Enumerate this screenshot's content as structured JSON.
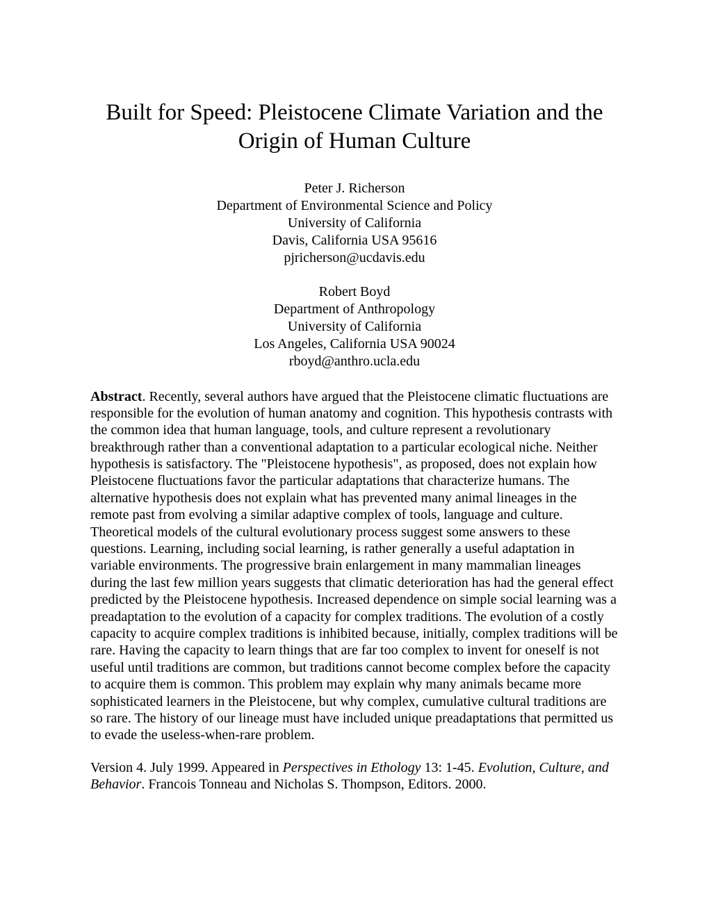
{
  "title": "Built for Speed: Pleistocene Climate Variation and the Origin of Human Culture",
  "author1": {
    "name": "Peter J. Richerson",
    "department": "Department of Environmental Science and Policy",
    "university": "University of California",
    "address": "Davis, California USA  95616",
    "email": "pjricherson@ucdavis.edu"
  },
  "author2": {
    "name": "Robert Boyd",
    "department": "Department of Anthropology",
    "university": "University of California",
    "address": "Los Angeles, California USA  90024",
    "email": "rboyd@anthro.ucla.edu"
  },
  "abstract": {
    "label": "Abstract",
    "text": ". Recently, several authors have argued that the Pleistocene climatic fluctuations are responsible for the evolution of human anatomy and cognition. This hypothesis contrasts with the common idea that human language, tools, and culture represent a revolutionary breakthrough rather than a conventional adaptation to a particular ecological niche. Neither hypothesis is satisfactory. The \"Pleistocene hypothesis\", as proposed, does not explain how Pleistocene fluctuations favor the particular adaptations that characterize humans. The alternative hypothesis does not explain what has prevented many animal lineages in the remote past from evolving a similar adaptive complex of tools, language and culture. Theoretical models of the cultural evolutionary process suggest some answers to these questions. Learning, including social learning, is rather generally a useful adaptation in variable environments. The progressive brain enlargement in many mammalian lineages during the last few million years suggests that climatic deterioration has had the general effect predicted by the Pleistocene hypothesis. Increased dependence on simple social learning was a preadaptation to the evolution of a capacity for complex traditions. The evolution of a costly capacity to acquire complex traditions is inhibited because, initially, complex traditions will be rare. Having the capacity to learn things that are far too complex to invent for oneself is not useful until traditions are common, but traditions cannot become complex before the capacity to acquire them is common. This problem may explain why many animals became more sophisticated learners in the Pleistocene, but why complex, cumulative cultural traditions are so rare. The history of our lineage must have included unique preadaptations that permitted us to evade the useless-when-rare problem."
  },
  "citation": {
    "prefix": "Version 4. July 1999. Appeared in ",
    "journal": "Perspectives in Ethology",
    "volume": " 13: 1-45. ",
    "subtitle": "Evolution, Culture, and Behavior",
    "suffix": ". Francois Tonneau and Nicholas S. Thompson, Editors. 2000."
  }
}
